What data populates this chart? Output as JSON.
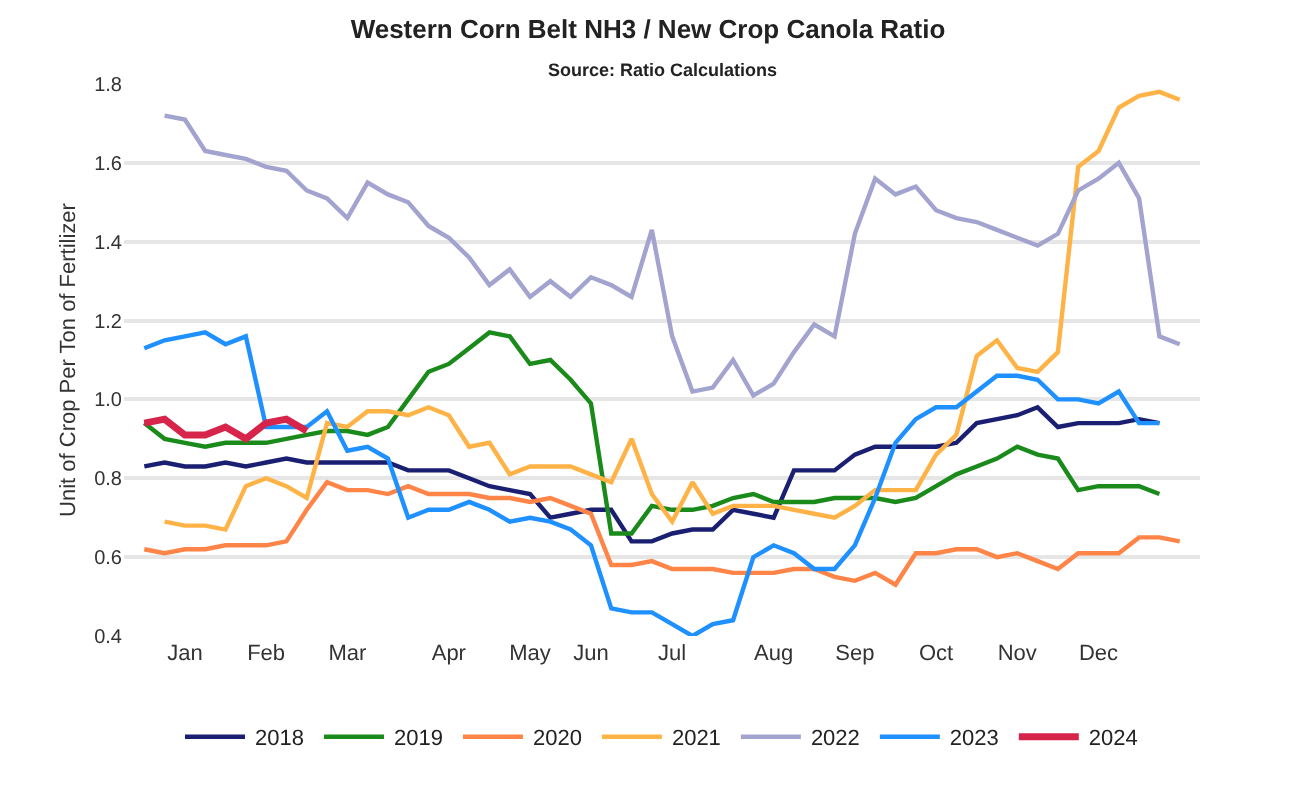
{
  "chart_data": {
    "type": "line",
    "title": "Western Corn Belt NH3 / New Crop Canola Ratio",
    "subtitle": "Source: Ratio Calculations",
    "ylabel": "Unit of Crop Per Ton of Fertilizer",
    "categories": [
      null,
      null,
      "Jan",
      null,
      null,
      null,
      "Feb",
      null,
      null,
      null,
      "Mar",
      null,
      null,
      null,
      null,
      "Apr",
      null,
      null,
      null,
      "May",
      null,
      null,
      "Jun",
      null,
      null,
      null,
      "Jul",
      null,
      null,
      null,
      null,
      "Aug",
      null,
      null,
      null,
      "Sep",
      null,
      null,
      null,
      "Oct",
      null,
      null,
      null,
      "Nov",
      null,
      null,
      null,
      "Dec",
      null,
      null,
      null,
      null
    ],
    "ylim": [
      0.4,
      1.8
    ],
    "yticks": [
      0.4,
      0.6,
      0.8,
      {
        "value": 1.0,
        "label": "1.0"
      },
      1.2,
      1.4,
      1.6,
      1.8
    ],
    "grid": "y",
    "legend": "bottom",
    "marker": "none",
    "line_style": "solid",
    "series": [
      {
        "name": "2018",
        "color": "#1a1f71",
        "values": [
          0.83,
          0.84,
          0.83,
          0.83,
          0.84,
          0.83,
          0.84,
          0.85,
          0.84,
          0.84,
          0.84,
          0.84,
          0.84,
          0.82,
          0.82,
          0.82,
          0.8,
          0.78,
          0.77,
          0.76,
          0.7,
          0.71,
          0.72,
          0.72,
          0.64,
          0.64,
          0.66,
          0.67,
          0.67,
          0.72,
          0.71,
          0.7,
          0.82,
          0.82,
          0.82,
          0.86,
          0.88,
          0.88,
          0.88,
          0.88,
          0.89,
          0.94,
          0.95,
          0.96,
          0.98,
          0.93,
          0.94,
          0.94,
          0.94,
          0.95,
          0.94,
          null
        ]
      },
      {
        "name": "2019",
        "color": "#1a8a1a",
        "values": [
          0.94,
          0.9,
          0.89,
          0.88,
          0.89,
          0.89,
          0.89,
          0.9,
          0.91,
          0.92,
          0.92,
          0.91,
          0.93,
          1.0,
          1.07,
          1.09,
          1.13,
          1.17,
          1.16,
          1.09,
          1.1,
          1.05,
          0.99,
          0.66,
          0.66,
          0.73,
          0.72,
          0.72,
          0.73,
          0.75,
          0.76,
          0.74,
          0.74,
          0.74,
          0.75,
          0.75,
          0.75,
          0.74,
          0.75,
          0.78,
          0.81,
          0.83,
          0.85,
          0.88,
          0.86,
          0.85,
          0.77,
          0.78,
          0.78,
          0.78,
          0.76,
          null
        ]
      },
      {
        "name": "2020",
        "color": "#ff8447",
        "values": [
          0.62,
          0.61,
          0.62,
          0.62,
          0.63,
          0.63,
          0.63,
          0.64,
          0.72,
          0.79,
          0.77,
          0.77,
          0.76,
          0.78,
          0.76,
          0.76,
          0.76,
          0.75,
          0.75,
          0.74,
          0.75,
          0.73,
          0.71,
          0.58,
          0.58,
          0.59,
          0.57,
          0.57,
          0.57,
          0.56,
          0.56,
          0.56,
          0.57,
          0.57,
          0.55,
          0.54,
          0.56,
          0.53,
          0.61,
          0.61,
          0.62,
          0.62,
          0.6,
          0.61,
          0.59,
          0.57,
          0.61,
          0.61,
          0.61,
          0.65,
          0.65,
          0.64
        ]
      },
      {
        "name": "2021",
        "color": "#ffb347",
        "values": [
          null,
          0.69,
          0.68,
          0.68,
          0.67,
          0.78,
          0.8,
          0.78,
          0.75,
          0.94,
          0.93,
          0.97,
          0.97,
          0.96,
          0.98,
          0.96,
          0.88,
          0.89,
          0.81,
          0.83,
          0.83,
          0.83,
          0.81,
          0.79,
          0.9,
          0.76,
          0.69,
          0.79,
          0.71,
          0.73,
          0.73,
          0.73,
          0.72,
          0.71,
          0.7,
          0.73,
          0.77,
          0.77,
          0.77,
          0.86,
          0.91,
          1.11,
          1.15,
          1.08,
          1.07,
          1.12,
          1.59,
          1.63,
          1.74,
          1.77,
          1.78,
          1.76
        ]
      },
      {
        "name": "2022",
        "color": "#a3a3cf",
        "values": [
          null,
          1.72,
          1.71,
          1.63,
          1.62,
          1.61,
          1.59,
          1.58,
          1.53,
          1.51,
          1.46,
          1.55,
          1.52,
          1.5,
          1.44,
          1.41,
          1.36,
          1.29,
          1.33,
          1.26,
          1.3,
          1.26,
          1.31,
          1.29,
          1.26,
          1.43,
          1.16,
          1.02,
          1.03,
          1.1,
          1.01,
          1.04,
          1.12,
          1.19,
          1.16,
          1.42,
          1.56,
          1.52,
          1.54,
          1.48,
          1.46,
          1.45,
          1.43,
          1.41,
          1.39,
          1.42,
          1.53,
          1.56,
          1.6,
          1.51,
          1.16,
          1.14
        ]
      },
      {
        "name": "2023",
        "color": "#1e90ff",
        "values": [
          1.13,
          1.15,
          1.16,
          1.17,
          1.14,
          1.16,
          0.93,
          0.93,
          0.93,
          0.97,
          0.87,
          0.88,
          0.85,
          0.7,
          0.72,
          0.72,
          0.74,
          0.72,
          0.69,
          0.7,
          0.69,
          0.67,
          0.63,
          0.47,
          0.46,
          0.46,
          0.43,
          0.4,
          0.43,
          0.44,
          0.6,
          0.63,
          0.61,
          0.57,
          0.57,
          0.63,
          0.75,
          0.89,
          0.95,
          0.98,
          0.98,
          1.02,
          1.06,
          1.06,
          1.05,
          1.0,
          1.0,
          0.99,
          1.02,
          0.94,
          0.94,
          null
        ]
      },
      {
        "name": "2024",
        "color": "#d6244a",
        "values": [
          0.94,
          0.95,
          0.91,
          0.91,
          0.93,
          0.9,
          0.94,
          0.95,
          0.92,
          null,
          null,
          null,
          null,
          null,
          null,
          null,
          null,
          null,
          null,
          null,
          null,
          null,
          null,
          null,
          null,
          null,
          null,
          null,
          null,
          null,
          null,
          null,
          null,
          null,
          null,
          null,
          null,
          null,
          null,
          null,
          null,
          null,
          null,
          null,
          null,
          null,
          null,
          null,
          null,
          null,
          null,
          null
        ]
      }
    ]
  }
}
